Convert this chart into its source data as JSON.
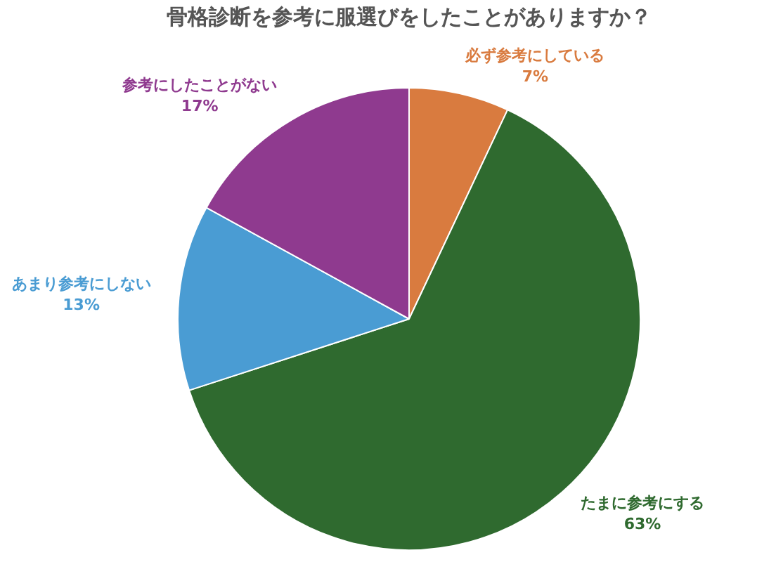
{
  "chart_data": {
    "type": "pie",
    "title": "骨格診断を参考に服選びをしたことがありますか？",
    "categories": [
      "必ず参考にしている",
      "たまに参考にする",
      "あまり参考にしない",
      "参考にしたことがない"
    ],
    "values": [
      7,
      63,
      13,
      17
    ],
    "value_labels": [
      "7%",
      "63%",
      "13%",
      "17%"
    ],
    "colors": [
      "#d97b3f",
      "#2f6a2f",
      "#4a9cd3",
      "#8f3a8f"
    ],
    "legend": false
  }
}
